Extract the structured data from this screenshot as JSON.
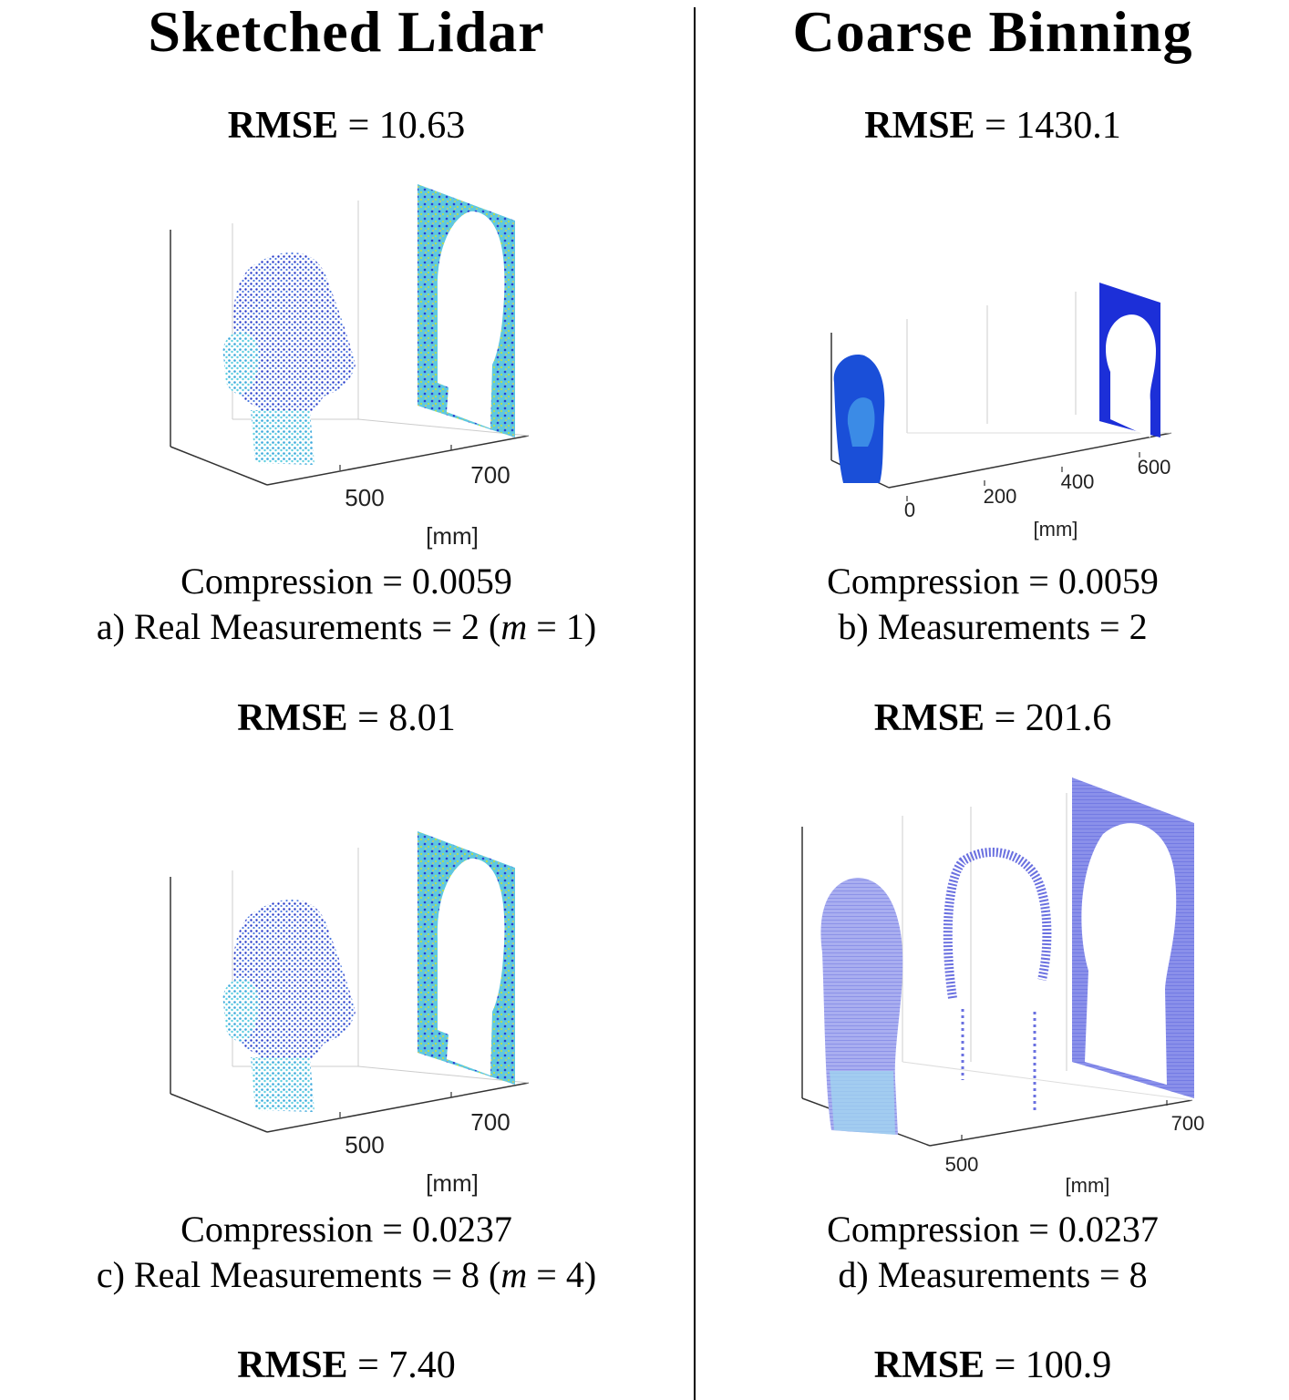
{
  "columns": {
    "left_title": "Sketched Lidar",
    "right_title": "Coarse Binning"
  },
  "rmse_label": "RMSE",
  "panels": {
    "a": {
      "rmse_above": "10.63",
      "ticks": [
        "500",
        "700"
      ],
      "unit": "[mm]",
      "compression": "0.0059",
      "caption_prefix": "a) Real Measurements",
      "caption_value": "2",
      "m_value": "1"
    },
    "b": {
      "rmse_above": "1430.1",
      "ticks": [
        "0",
        "200",
        "400",
        "600"
      ],
      "unit": "[mm]",
      "compression": "0.0059",
      "caption_prefix": "b) Measurements",
      "caption_value": "2"
    },
    "c": {
      "rmse_above": "8.01",
      "ticks": [
        "500",
        "700"
      ],
      "unit": "[mm]",
      "compression": "0.0237",
      "caption_prefix": "c) Real Measurements",
      "caption_value": "8",
      "m_value": "4"
    },
    "d": {
      "rmse_above": "201.6",
      "ticks": [
        "500",
        "700"
      ],
      "unit": "[mm]",
      "compression": "0.0237",
      "caption_prefix": "d) Measurements",
      "caption_value": "8"
    }
  },
  "bottom": {
    "left_rmse": "7.40",
    "right_rmse": "100.9"
  },
  "compression_label": "Compression",
  "m_symbol": "m",
  "colors": {
    "dark_blue": "#1a2cc8",
    "mid_blue": "#3a6fe0",
    "cyan": "#4fd0e8",
    "speckle": "#c8e040",
    "light_blue": "#8c90e8"
  }
}
